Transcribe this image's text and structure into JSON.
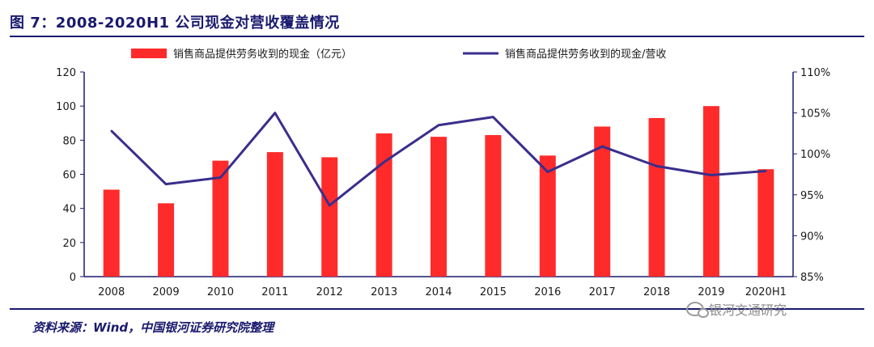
{
  "header": {
    "title": "图 7：2008-2020H1 公司现金对营收覆盖情况"
  },
  "footer": {
    "source": "资料来源：Wind，中国银河证券研究院整理",
    "watermark": "银河交通研究"
  },
  "colors": {
    "bar": "#ff2b2b",
    "line": "#3a2e8c",
    "frame": "#1a1a6e"
  },
  "chart_data": {
    "type": "bar",
    "categories": [
      "2008",
      "2009",
      "2010",
      "2011",
      "2012",
      "2013",
      "2014",
      "2015",
      "2016",
      "2017",
      "2018",
      "2019",
      "2020H1"
    ],
    "series": [
      {
        "name": "销售商品提供劳务收到的现金（亿元）",
        "type": "bar",
        "axis": "left",
        "values": [
          51,
          43,
          68,
          73,
          70,
          84,
          82,
          83,
          71,
          88,
          93,
          100,
          63
        ]
      },
      {
        "name": "销售商品提供劳务收到的现金/营收",
        "type": "line",
        "axis": "right",
        "values": [
          102.8,
          96.3,
          97.1,
          105.0,
          93.7,
          99.0,
          103.5,
          104.5,
          97.8,
          100.9,
          98.5,
          97.4,
          97.9
        ]
      }
    ],
    "y_left": {
      "min": 0,
      "max": 120,
      "ticks": [
        0,
        20,
        40,
        60,
        80,
        100,
        120
      ]
    },
    "y_right": {
      "min": 85,
      "max": 110,
      "ticks": [
        "85%",
        "90%",
        "95%",
        "100%",
        "105%",
        "110%"
      ]
    },
    "legend_position": "top"
  }
}
